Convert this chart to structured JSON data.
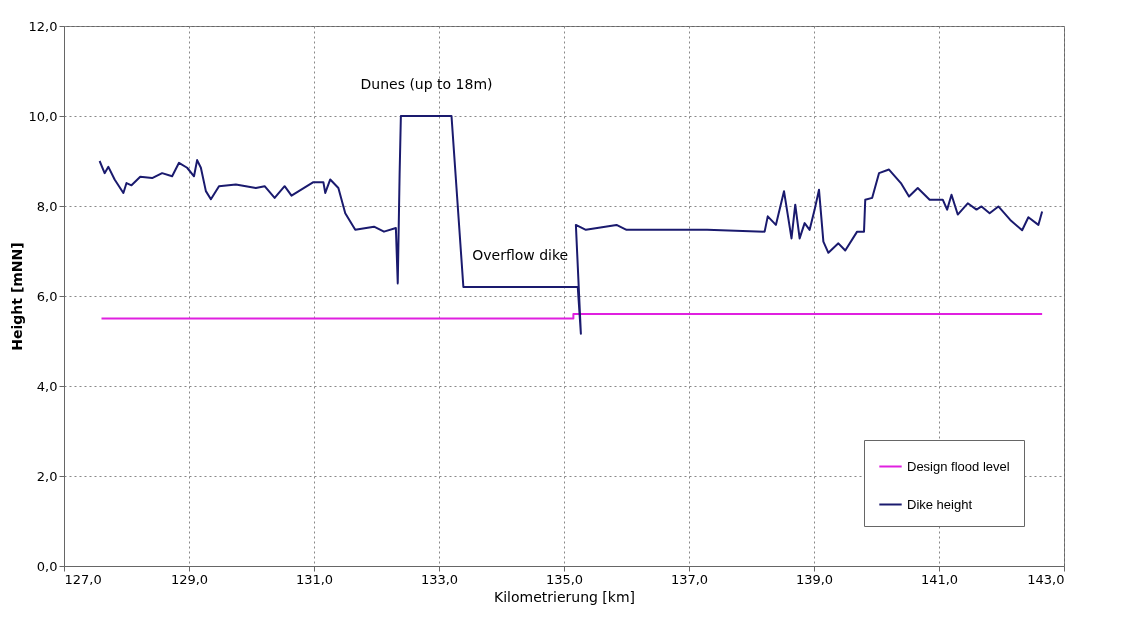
{
  "chart_data": {
    "type": "line",
    "xlabel": "Kilometrierung [km]",
    "ylabel": "Height [mNN]",
    "xlim": [
      127,
      143
    ],
    "ylim": [
      0,
      12
    ],
    "xticks": [
      {
        "value": 127,
        "label": "127,0"
      },
      {
        "value": 129,
        "label": "129,0"
      },
      {
        "value": 131,
        "label": "131,0"
      },
      {
        "value": 133,
        "label": "133,0"
      },
      {
        "value": 135,
        "label": "135,0"
      },
      {
        "value": 137,
        "label": "137,0"
      },
      {
        "value": 139,
        "label": "139,0"
      },
      {
        "value": 141,
        "label": "141,0"
      },
      {
        "value": 143,
        "label": "143,0"
      }
    ],
    "yticks": [
      {
        "value": 0,
        "label": "0,0"
      },
      {
        "value": 2,
        "label": "2,0"
      },
      {
        "value": 4,
        "label": "4,0"
      },
      {
        "value": 6,
        "label": "6,0"
      },
      {
        "value": 8,
        "label": "8,0"
      },
      {
        "value": 10,
        "label": "10,0"
      },
      {
        "value": 12,
        "label": "12,0"
      }
    ],
    "grid": true,
    "legend": "bottom right",
    "series": [
      {
        "name": "Design flood level",
        "color": "#e020e0",
        "x": [
          127.6,
          135.15,
          135.15,
          142.65
        ],
        "values": [
          5.5,
          5.5,
          5.6,
          5.6
        ]
      },
      {
        "name": "Dike height",
        "color": "#1a1a6e",
        "x": [
          127.57,
          127.65,
          127.71,
          127.81,
          127.95,
          128.0,
          128.08,
          128.22,
          128.41,
          128.57,
          128.73,
          128.84,
          128.97,
          129.08,
          129.13,
          129.19,
          129.27,
          129.35,
          129.48,
          129.75,
          130.07,
          130.21,
          130.37,
          130.53,
          130.64,
          130.99,
          131.15,
          131.18,
          131.26,
          131.39,
          131.5,
          131.66,
          131.96,
          132.12,
          132.31,
          132.34,
          132.37,
          132.39,
          133.2,
          133.39,
          135.22,
          135.27,
          135.19,
          135.35,
          135.84,
          136.0,
          137.29,
          138.21,
          138.26,
          138.39,
          138.52,
          138.64,
          138.7,
          138.77,
          138.85,
          138.93,
          139.01,
          139.08,
          139.15,
          139.23,
          139.39,
          139.5,
          139.69,
          139.8,
          139.82,
          139.93,
          140.04,
          140.2,
          140.39,
          140.52,
          140.66,
          140.85,
          141.06,
          141.13,
          141.2,
          141.3,
          141.46,
          141.6,
          141.68,
          141.81,
          141.95,
          142.14,
          142.33,
          142.43,
          142.59,
          142.65
        ],
        "values": [
          9.0,
          8.73,
          8.87,
          8.59,
          8.29,
          8.51,
          8.46,
          8.65,
          8.62,
          8.73,
          8.66,
          8.96,
          8.85,
          8.66,
          9.02,
          8.85,
          8.33,
          8.15,
          8.44,
          8.48,
          8.4,
          8.44,
          8.18,
          8.44,
          8.23,
          8.53,
          8.53,
          8.29,
          8.59,
          8.4,
          7.84,
          7.47,
          7.54,
          7.43,
          7.51,
          6.28,
          8.73,
          10.0,
          10.0,
          6.2,
          6.2,
          5.16,
          7.58,
          7.47,
          7.58,
          7.47,
          7.47,
          7.43,
          7.77,
          7.58,
          8.33,
          7.28,
          8.03,
          7.28,
          7.62,
          7.47,
          7.92,
          8.36,
          7.21,
          6.96,
          7.17,
          7.01,
          7.43,
          7.43,
          8.14,
          8.18,
          8.73,
          8.81,
          8.51,
          8.21,
          8.4,
          8.14,
          8.14,
          7.92,
          8.25,
          7.81,
          8.06,
          7.92,
          7.99,
          7.84,
          7.99,
          7.69,
          7.46,
          7.75,
          7.58,
          7.88
        ]
      }
    ],
    "annotations": [
      {
        "text": "Dunes (up to 18m)",
        "x": 132.8,
        "y": 10.0
      },
      {
        "text": "Overflow dike",
        "x": 134.3,
        "y": 6.2
      }
    ]
  }
}
